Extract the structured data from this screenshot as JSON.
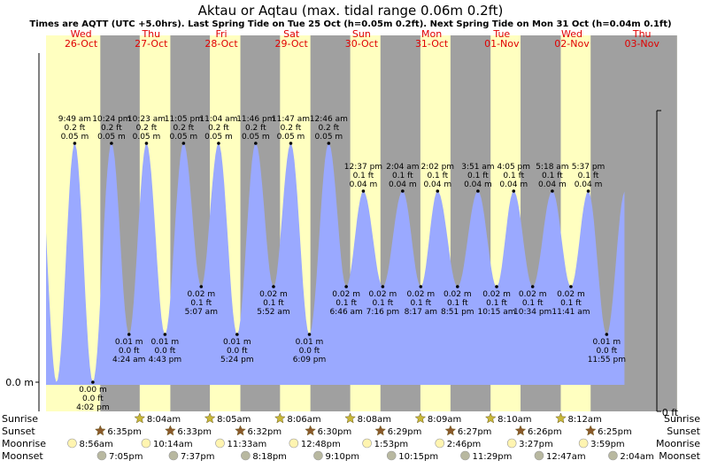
{
  "chart_data": {
    "type": "area",
    "title": "Aktau or Aqtau (max. tidal range 0.06m 0.2ft)",
    "subtitle": "Times are AQTT (UTC +5.0hrs). Last Spring Tide on Tue 25 Oct (h=0.05m 0.2ft). Next Spring Tide on Mon 31 Oct (h=0.04m 0.1ft)",
    "time_range_hours": [
      0,
      216
    ],
    "height_range_m": [
      0.0,
      0.06
    ],
    "left_axis": {
      "label": "0.0 m"
    },
    "right_axis": {
      "label": "0 ft"
    },
    "colors": {
      "day": "#ffffc0",
      "night": "#a0a0a0",
      "tide_fill": "#9aa9ff",
      "day_label": "#e00000",
      "sun": "#c8b838",
      "sunset": "#8b5a2b",
      "moonrise": "#fff4b0",
      "moonset": "#b8b8a0"
    },
    "days": [
      {
        "name": "Wed",
        "date": "26-Oct"
      },
      {
        "name": "Thu",
        "date": "27-Oct"
      },
      {
        "name": "Fri",
        "date": "28-Oct"
      },
      {
        "name": "Sat",
        "date": "29-Oct"
      },
      {
        "name": "Sun",
        "date": "30-Oct"
      },
      {
        "name": "Mon",
        "date": "31-Oct"
      },
      {
        "name": "Tue",
        "date": "01-Nov"
      },
      {
        "name": "Wed",
        "date": "02-Nov"
      },
      {
        "name": "Thu",
        "date": "03-Nov"
      }
    ],
    "tides": [
      {
        "type": "high",
        "t": 9.82,
        "h": 0.05,
        "time": "9:49 am",
        "ft": "0.2 ft",
        "m": "0.05 m"
      },
      {
        "type": "low",
        "t": 16.03,
        "h": 0.0,
        "time": "4:02 pm",
        "ft": "0.0 ft",
        "m": "0.00 m"
      },
      {
        "type": "high",
        "t": 22.4,
        "h": 0.05,
        "time": "10:24 pm",
        "ft": "0.2 ft",
        "m": "0.05 m"
      },
      {
        "type": "low",
        "t": 28.4,
        "h": 0.01,
        "time": "4:24 am",
        "ft": "0.0 ft",
        "m": "0.01 m"
      },
      {
        "type": "high",
        "t": 34.38,
        "h": 0.05,
        "time": "10:23 am",
        "ft": "0.2 ft",
        "m": "0.05 m"
      },
      {
        "type": "low",
        "t": 40.72,
        "h": 0.01,
        "time": "4:43 pm",
        "ft": "0.0 ft",
        "m": "0.01 m"
      },
      {
        "type": "high",
        "t": 47.08,
        "h": 0.05,
        "time": "11:05 pm",
        "ft": "0.2 ft",
        "m": "0.05 m"
      },
      {
        "type": "low",
        "t": 53.12,
        "h": 0.02,
        "time": "5:07 am",
        "ft": "0.1 ft",
        "m": "0.02 m"
      },
      {
        "type": "high",
        "t": 59.07,
        "h": 0.05,
        "time": "11:04 am",
        "ft": "0.2 ft",
        "m": "0.05 m"
      },
      {
        "type": "low",
        "t": 65.4,
        "h": 0.01,
        "time": "5:24 pm",
        "ft": "0.0 ft",
        "m": "0.01 m"
      },
      {
        "type": "high",
        "t": 71.77,
        "h": 0.05,
        "time": "11:46 pm",
        "ft": "0.2 ft",
        "m": "0.05 m"
      },
      {
        "type": "low",
        "t": 77.87,
        "h": 0.02,
        "time": "5:52 am",
        "ft": "0.1 ft",
        "m": "0.02 m"
      },
      {
        "type": "high",
        "t": 83.78,
        "h": 0.05,
        "time": "11:47 am",
        "ft": "0.2 ft",
        "m": "0.05 m"
      },
      {
        "type": "low",
        "t": 90.15,
        "h": 0.01,
        "time": "6:09 pm",
        "ft": "0.0 ft",
        "m": "0.01 m"
      },
      {
        "type": "high",
        "t": 96.77,
        "h": 0.05,
        "time": "12:46 am",
        "ft": "0.2 ft",
        "m": "0.05 m"
      },
      {
        "type": "low",
        "t": 102.77,
        "h": 0.02,
        "time": "6:46 am",
        "ft": "0.1 ft",
        "m": "0.02 m"
      },
      {
        "type": "high",
        "t": 108.62,
        "h": 0.04,
        "time": "12:37 pm",
        "ft": "0.1 ft",
        "m": "0.04 m"
      },
      {
        "type": "low",
        "t": 115.27,
        "h": 0.02,
        "time": "7:16 pm",
        "ft": "0.1 ft",
        "m": "0.02 m"
      },
      {
        "type": "high",
        "t": 122.07,
        "h": 0.04,
        "time": "2:04 am",
        "ft": "0.1 ft",
        "m": "0.04 m"
      },
      {
        "type": "low",
        "t": 128.28,
        "h": 0.02,
        "time": "8:17 am",
        "ft": "0.1 ft",
        "m": "0.02 m"
      },
      {
        "type": "high",
        "t": 134.03,
        "h": 0.04,
        "time": "2:02 pm",
        "ft": "0.1 ft",
        "m": "0.04 m"
      },
      {
        "type": "low",
        "t": 140.85,
        "h": 0.02,
        "time": "8:51 pm",
        "ft": "0.1 ft",
        "m": "0.02 m"
      },
      {
        "type": "high",
        "t": 147.85,
        "h": 0.04,
        "time": "3:51 am",
        "ft": "0.1 ft",
        "m": "0.04 m"
      },
      {
        "type": "low",
        "t": 154.25,
        "h": 0.02,
        "time": "10:15 am",
        "ft": "0.1 ft",
        "m": "0.02 m"
      },
      {
        "type": "high",
        "t": 160.08,
        "h": 0.04,
        "time": "4:05 pm",
        "ft": "0.1 ft",
        "m": "0.04 m"
      },
      {
        "type": "low",
        "t": 166.57,
        "h": 0.02,
        "time": "10:34 pm",
        "ft": "0.1 ft",
        "m": "0.02 m"
      },
      {
        "type": "high",
        "t": 173.3,
        "h": 0.04,
        "time": "5:18 am",
        "ft": "0.1 ft",
        "m": "0.04 m"
      },
      {
        "type": "low",
        "t": 179.68,
        "h": 0.02,
        "time": "11:41 am",
        "ft": "0.1 ft",
        "m": "0.02 m"
      },
      {
        "type": "high",
        "t": 185.62,
        "h": 0.04,
        "time": "5:37 pm",
        "ft": "0.1 ft",
        "m": "0.04 m"
      },
      {
        "type": "low",
        "t": 191.92,
        "h": 0.01,
        "time": "11:55 pm",
        "ft": "0.0 ft",
        "m": "0.01 m"
      }
    ],
    "astro_rows": [
      "Sunrise",
      "Sunset",
      "Moonrise",
      "Moonset"
    ],
    "sunrise": [
      {
        "t": 32.07,
        "label": "8:04am"
      },
      {
        "t": 56.08,
        "label": "8:05am"
      },
      {
        "t": 80.1,
        "label": "8:06am"
      },
      {
        "t": 104.13,
        "label": "8:08am"
      },
      {
        "t": 128.15,
        "label": "8:09am"
      },
      {
        "t": 152.17,
        "label": "8:10am"
      },
      {
        "t": 176.2,
        "label": "8:12am"
      }
    ],
    "sunset": [
      {
        "t": 18.58,
        "label": "6:35pm"
      },
      {
        "t": 42.55,
        "label": "6:33pm"
      },
      {
        "t": 66.53,
        "label": "6:32pm"
      },
      {
        "t": 90.5,
        "label": "6:30pm"
      },
      {
        "t": 114.48,
        "label": "6:29pm"
      },
      {
        "t": 138.45,
        "label": "6:27pm"
      },
      {
        "t": 162.43,
        "label": "6:26pm"
      },
      {
        "t": 186.42,
        "label": "6:25pm"
      }
    ],
    "moonrise": [
      {
        "t": 8.93,
        "label": "8:56am"
      },
      {
        "t": 34.23,
        "label": "10:14am"
      },
      {
        "t": 59.55,
        "label": "11:33am"
      },
      {
        "t": 84.8,
        "label": "12:48pm"
      },
      {
        "t": 109.88,
        "label": "1:53pm"
      },
      {
        "t": 134.77,
        "label": "2:46pm"
      },
      {
        "t": 159.45,
        "label": "3:27pm"
      },
      {
        "t": 183.98,
        "label": "3:59pm"
      }
    ],
    "moonset": [
      {
        "t": 19.08,
        "label": "7:05pm"
      },
      {
        "t": 43.62,
        "label": "7:37pm"
      },
      {
        "t": 68.3,
        "label": "8:18pm"
      },
      {
        "t": 93.17,
        "label": "9:10pm"
      },
      {
        "t": 118.25,
        "label": "10:15pm"
      },
      {
        "t": 143.48,
        "label": "11:29pm"
      },
      {
        "t": 168.78,
        "label": "12:47am"
      },
      {
        "t": 194.07,
        "label": "2:04am"
      }
    ]
  }
}
